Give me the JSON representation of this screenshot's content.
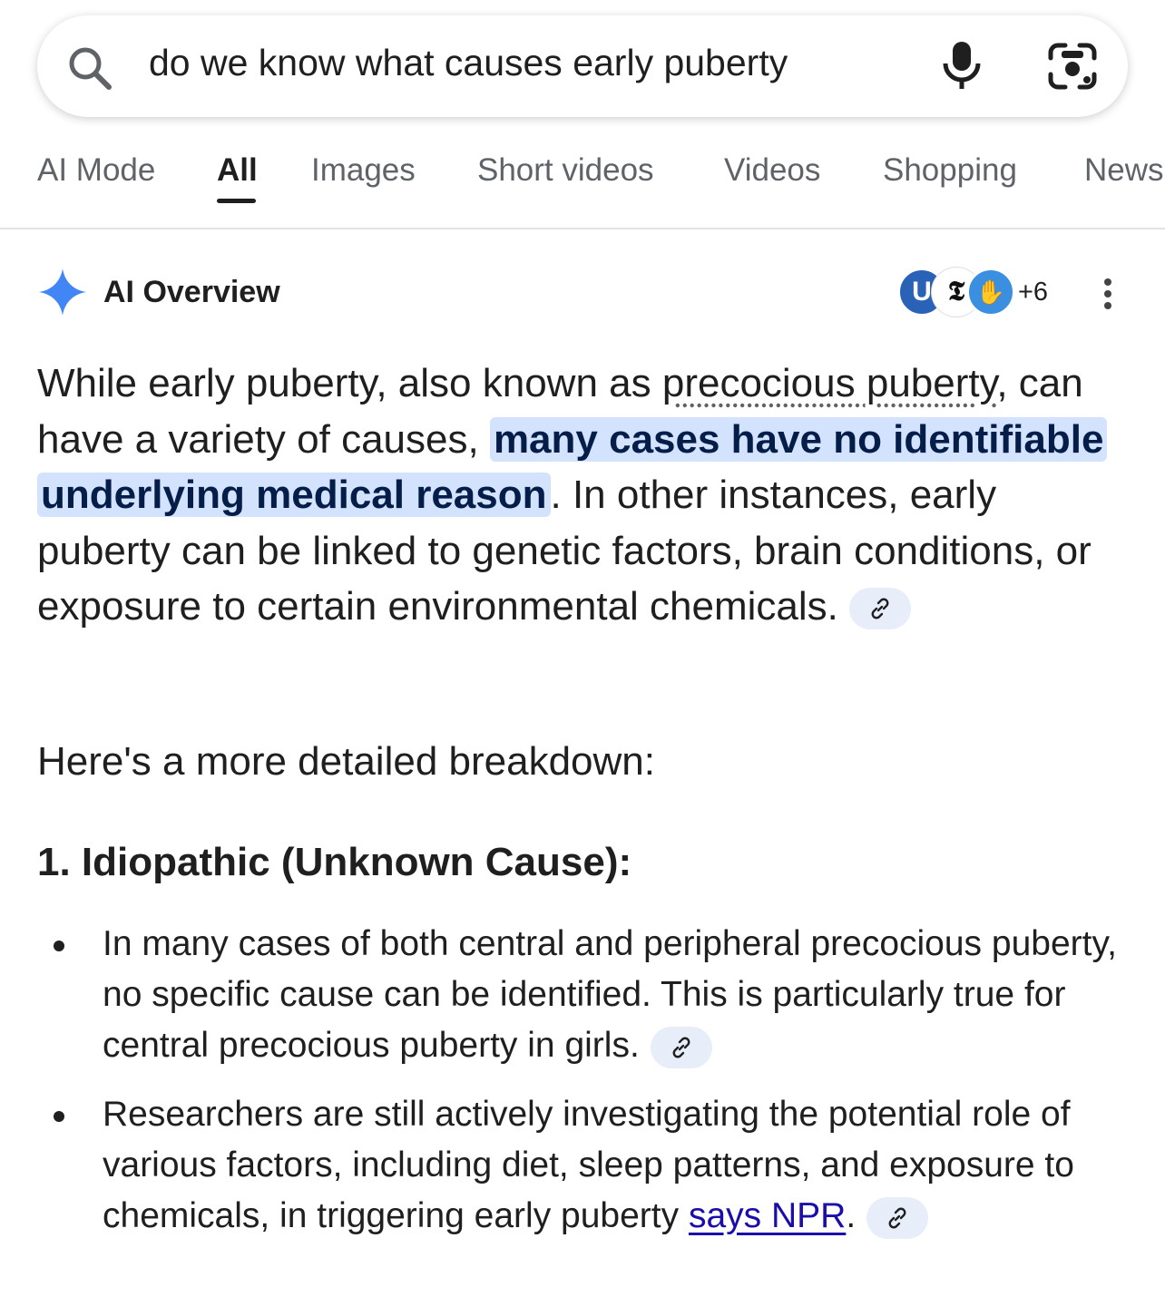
{
  "search": {
    "query": "do we know what causes early puberty"
  },
  "tabs": [
    {
      "label": "AI Mode"
    },
    {
      "label": "All"
    },
    {
      "label": "Images"
    },
    {
      "label": "Short videos"
    },
    {
      "label": "Videos"
    },
    {
      "label": "Shopping"
    },
    {
      "label": "News"
    }
  ],
  "ai_overview": {
    "title": "AI Overview",
    "sources_more": "+6",
    "source_avatars": [
      "U",
      "𝕿",
      "✋"
    ],
    "intro": {
      "part1": "While early puberty, also known as ",
      "term": "precocious puberty",
      "part2": ", can have a variety of causes, ",
      "highlight": "many cases have no identifiable underlying medical reason",
      "part3": ". In other instances, early puberty can be linked to genetic factors, brain conditions, or exposure to certain environmental chemicals."
    },
    "breakdown_intro": "Here's a more detailed breakdown:",
    "section1_heading": "1. Idiopathic (Unknown Cause):",
    "bullets": [
      {
        "text": "In many cases of both central and peripheral precocious puberty, no specific cause can be identified. This is particularly true for central precocious puberty in girls."
      },
      {
        "text": "Researchers are still actively investigating the potential role of various factors, including diet, sleep patterns, and exposure to chemicals, in triggering early puberty ",
        "link": "says NPR",
        "after": "."
      }
    ]
  },
  "colors": {
    "highlight_bg": "#d3e3fd",
    "link": "#1a0dab",
    "sparkle": "#4285f4",
    "chip_bg": "#e8eef9"
  }
}
